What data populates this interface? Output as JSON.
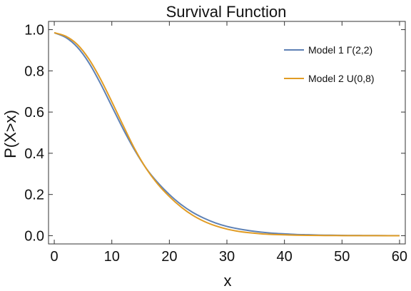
{
  "chart_data": {
    "type": "line",
    "title": "Survival Function",
    "xlabel": "x",
    "ylabel": "P(X>x)",
    "xlim": [
      -1,
      61
    ],
    "ylim": [
      -0.04,
      1.04
    ],
    "xticks": [
      0,
      10,
      20,
      30,
      40,
      50,
      60
    ],
    "yticks": [
      0.0,
      0.2,
      0.4,
      0.6,
      0.8,
      1.0
    ],
    "xtick_labels": [
      "0",
      "10",
      "20",
      "30",
      "40",
      "50",
      "60"
    ],
    "ytick_labels": [
      "0.0",
      "0.2",
      "0.4",
      "0.6",
      "0.8",
      "1.0"
    ],
    "grid": false,
    "legend_position": "top-right",
    "series": [
      {
        "name": "Model 1 Γ(2,2)",
        "color": "#5e81b5",
        "x": [
          0,
          2,
          4,
          6,
          8,
          10,
          12,
          14,
          16,
          18,
          20,
          22,
          24,
          26,
          28,
          30,
          32,
          34,
          36,
          38,
          40,
          42,
          44,
          46,
          48,
          50,
          52,
          54,
          56,
          58,
          60
        ],
        "y": [
          0.985,
          0.962,
          0.915,
          0.84,
          0.74,
          0.628,
          0.516,
          0.414,
          0.326,
          0.257,
          0.2,
          0.152,
          0.114,
          0.085,
          0.062,
          0.045,
          0.033,
          0.024,
          0.017,
          0.012,
          0.009,
          0.006,
          0.0045,
          0.003,
          0.0022,
          0.0016,
          0.0011,
          0.0008,
          0.0005,
          0.0003,
          0.0002
        ]
      },
      {
        "name": "Model 2 U(0,8)",
        "color": "#e19c24",
        "x": [
          0,
          2,
          4,
          6,
          8,
          10,
          12,
          14,
          16,
          18,
          20,
          22,
          24,
          26,
          28,
          30,
          32,
          34,
          36,
          38,
          40,
          42,
          44,
          46,
          48,
          50,
          52,
          54,
          56,
          58,
          60
        ],
        "y": [
          0.985,
          0.968,
          0.928,
          0.858,
          0.762,
          0.65,
          0.533,
          0.42,
          0.325,
          0.25,
          0.19,
          0.14,
          0.1,
          0.07,
          0.048,
          0.032,
          0.021,
          0.014,
          0.009,
          0.006,
          0.004,
          0.0025,
          0.0016,
          0.001,
          0.0006,
          0.0004,
          0.0002,
          0.0001,
          0.0001,
          0.0,
          0.0
        ]
      }
    ]
  }
}
